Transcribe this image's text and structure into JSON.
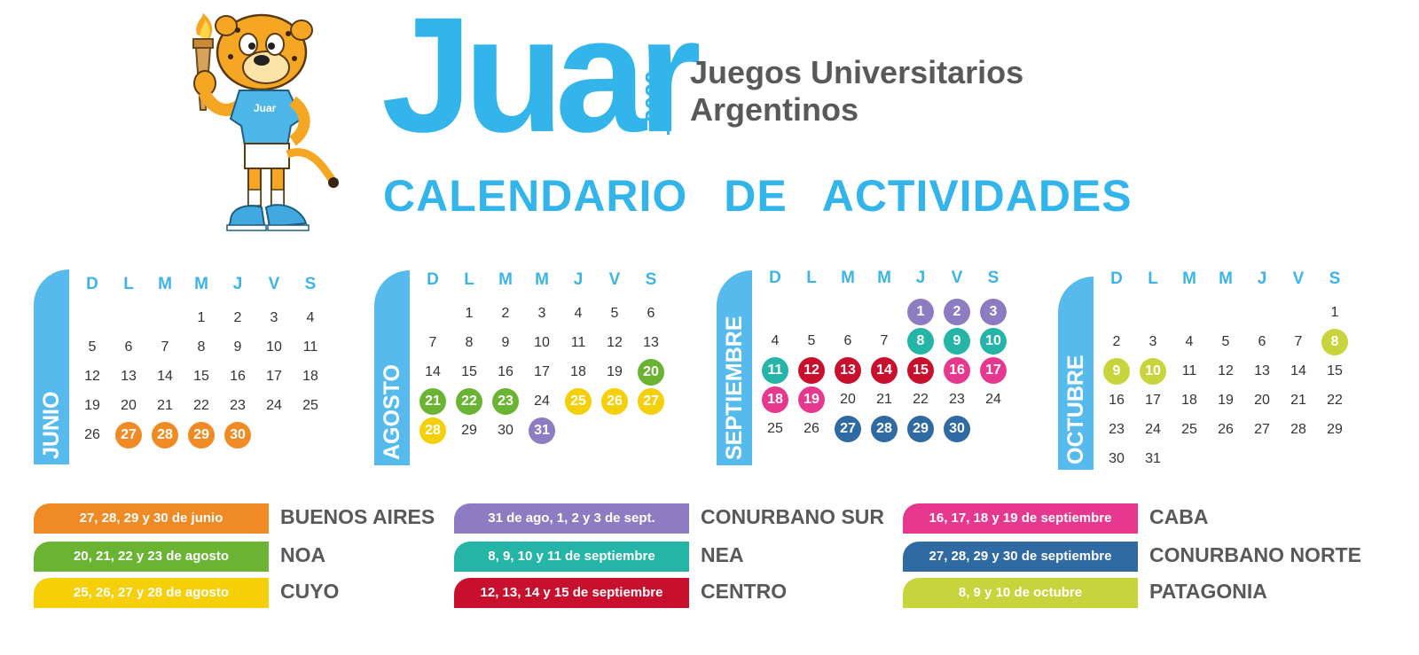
{
  "header": {
    "logo_word": "Juar",
    "logo_year": "2022",
    "org_line1": "Juegos Universitarios",
    "org_line2": "Argentinos",
    "title": "CALENDARIO   DE ACTIVIDADES",
    "mascot_shirt_text": "Juar"
  },
  "weekday_labels": [
    "D",
    "L",
    "M",
    "M",
    "J",
    "V",
    "S"
  ],
  "months": [
    {
      "name": "JUNIO",
      "start_weekday": 3,
      "days": 30,
      "highlights": [
        {
          "days": [
            27,
            28,
            29,
            30
          ],
          "region": "buenos-aires"
        }
      ]
    },
    {
      "name": "AGOSTO",
      "start_weekday": 1,
      "days": 31,
      "highlights": [
        {
          "days": [
            20,
            21,
            22,
            23
          ],
          "region": "noa"
        },
        {
          "days": [
            25,
            26,
            27,
            28
          ],
          "region": "cuyo"
        },
        {
          "days": [
            31
          ],
          "region": "conurbano-sur"
        }
      ]
    },
    {
      "name": "SEPTIEMBRE",
      "start_weekday": 4,
      "days": 30,
      "highlights": [
        {
          "days": [
            1,
            2,
            3
          ],
          "region": "conurbano-sur"
        },
        {
          "days": [
            8,
            9,
            10,
            11
          ],
          "region": "nea"
        },
        {
          "days": [
            12,
            13,
            14,
            15
          ],
          "region": "centro"
        },
        {
          "days": [
            16,
            17,
            18,
            19
          ],
          "region": "caba"
        },
        {
          "days": [
            27,
            28,
            29,
            30
          ],
          "region": "conurbano-norte"
        }
      ]
    },
    {
      "name": "OCTUBRE",
      "start_weekday": 6,
      "days": 31,
      "highlights": [
        {
          "days": [
            8,
            9,
            10
          ],
          "region": "patagonia"
        }
      ]
    }
  ],
  "colors": {
    "accent": "#33b5eb",
    "buenos-aires": "#f08a24",
    "noa": "#6ab333",
    "cuyo": "#f5cf08",
    "conurbano-sur": "#8e7cc3",
    "nea": "#25b5a6",
    "centro": "#c8102e",
    "caba": "#e6388e",
    "conurbano-norte": "#2f6aa3",
    "patagonia": "#c7d43c"
  },
  "legend": [
    {
      "dates": "27, 28, 29 y 30 de junio",
      "region": "BUENOS AIRES",
      "key": "buenos-aires"
    },
    {
      "dates": "20, 21, 22 y 23 de agosto",
      "region": "NOA",
      "key": "noa"
    },
    {
      "dates": "25, 26, 27 y 28 de agosto",
      "region": "CUYO",
      "key": "cuyo"
    },
    {
      "dates": "31 de ago, 1, 2 y  3 de sept.",
      "region": "CONURBANO SUR",
      "key": "conurbano-sur"
    },
    {
      "dates": "8, 9, 10 y 11 de septiembre",
      "region": "NEA",
      "key": "nea"
    },
    {
      "dates": "12, 13, 14 y 15 de septiembre",
      "region": "CENTRO",
      "key": "centro"
    },
    {
      "dates": "16, 17, 18 y 19 de septiembre",
      "region": "CABA",
      "key": "caba"
    },
    {
      "dates": "27, 28, 29 y 30 de septiembre",
      "region": "CONURBANO NORTE",
      "key": "conurbano-norte"
    },
    {
      "dates": "8, 9 y 10 de octubre",
      "region": "PATAGONIA",
      "key": "patagonia"
    }
  ]
}
